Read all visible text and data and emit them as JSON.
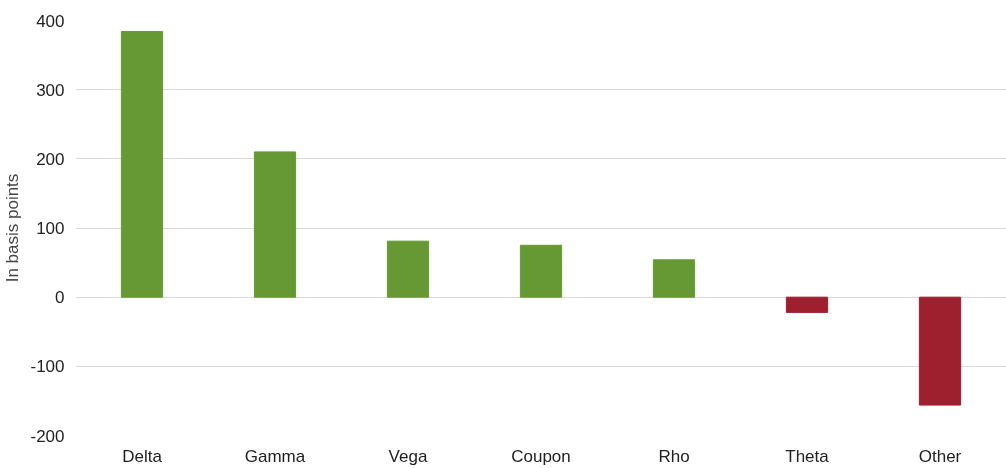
{
  "chart_data": {
    "type": "bar",
    "ylabel": "In basis points",
    "categories": [
      "Delta",
      "Gamma",
      "Vega",
      "Coupon",
      "Rho",
      "Theta",
      "Other"
    ],
    "values": [
      384,
      210,
      81,
      75,
      54,
      -22,
      -156
    ],
    "colors": [
      "#669933",
      "#669933",
      "#669933",
      "#669933",
      "#669933",
      "#9e1f2e",
      "#9e1f2e"
    ],
    "ylim": [
      -200,
      400
    ],
    "yticks": [
      -200,
      -100,
      0,
      100,
      200,
      300,
      400
    ],
    "grid": "y"
  }
}
